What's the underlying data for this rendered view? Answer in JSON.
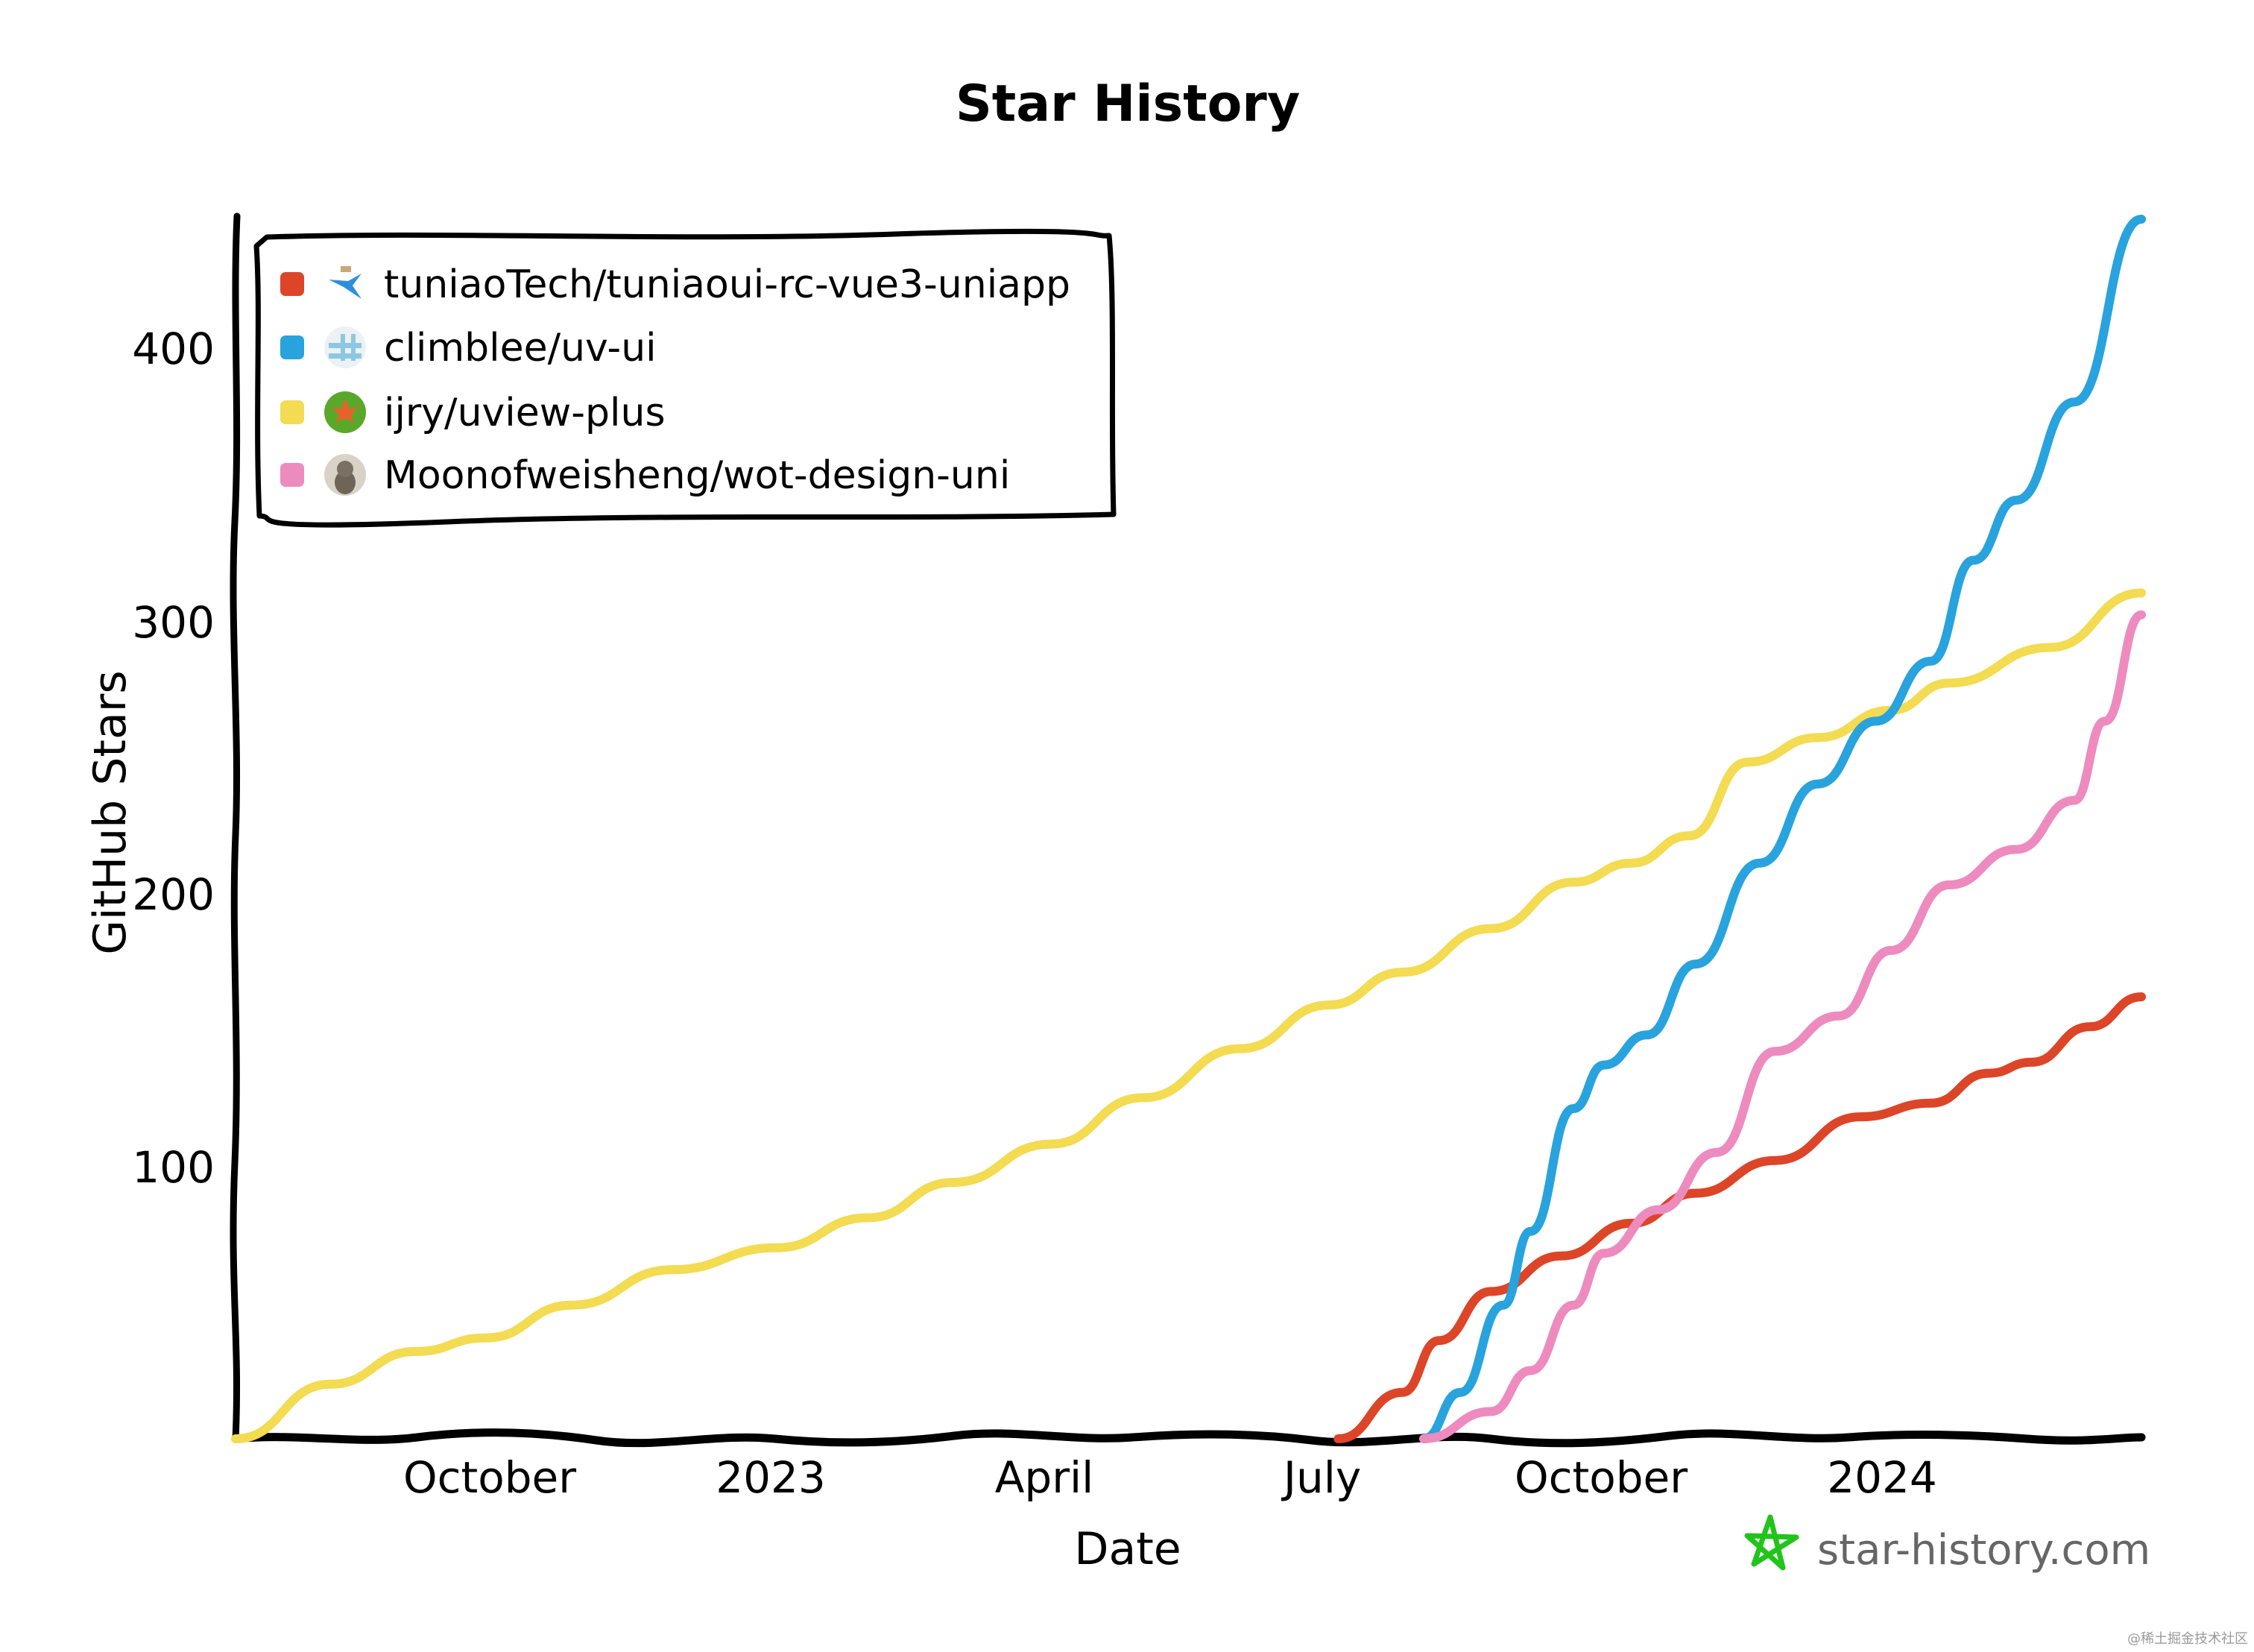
{
  "chart_data": {
    "type": "line",
    "title": "Star History",
    "xlabel": "Date",
    "ylabel": "GitHub Stars",
    "ylim": [
      0,
      450
    ],
    "xlim": [
      "2022-07-08",
      "2024-03-23"
    ],
    "grid": false,
    "legend_position": "top-left",
    "y_ticks": [
      100,
      200,
      300,
      400
    ],
    "x_ticks": [
      {
        "label": "October",
        "date": "2022-10-01"
      },
      {
        "label": "2023",
        "date": "2023-01-01"
      },
      {
        "label": "April",
        "date": "2023-04-01"
      },
      {
        "label": "July",
        "date": "2023-07-01"
      },
      {
        "label": "October",
        "date": "2023-10-01"
      },
      {
        "label": "2024",
        "date": "2024-01-01"
      }
    ],
    "series": [
      {
        "name": "tuniaoTech/tuniaoui-rc-vue3-uniapp",
        "color": "#dd4528",
        "icon": "bird-avatar",
        "points": [
          [
            "2023-07-04",
            0
          ],
          [
            "2023-07-25",
            17
          ],
          [
            "2023-08-06",
            36
          ],
          [
            "2023-08-23",
            54
          ],
          [
            "2023-09-15",
            67
          ],
          [
            "2023-10-08",
            79
          ],
          [
            "2023-10-29",
            90
          ],
          [
            "2023-11-24",
            102
          ],
          [
            "2023-12-22",
            118
          ],
          [
            "2024-01-14",
            123
          ],
          [
            "2024-02-02",
            134
          ],
          [
            "2024-02-16",
            138
          ],
          [
            "2024-03-06",
            151
          ],
          [
            "2024-03-23",
            162
          ]
        ]
      },
      {
        "name": "climblee/uv-ui",
        "color": "#28a3dd",
        "icon": "hash-avatar",
        "points": [
          [
            "2023-08-01",
            0
          ],
          [
            "2023-08-13",
            17
          ],
          [
            "2023-08-27",
            49
          ],
          [
            "2023-09-05",
            76
          ],
          [
            "2023-09-19",
            121
          ],
          [
            "2023-09-29",
            137
          ],
          [
            "2023-10-13",
            148
          ],
          [
            "2023-10-29",
            174
          ],
          [
            "2023-11-19",
            211
          ],
          [
            "2023-12-08",
            240
          ],
          [
            "2023-12-27",
            263
          ],
          [
            "2024-01-14",
            285
          ],
          [
            "2024-01-28",
            322
          ],
          [
            "2024-02-11",
            344
          ],
          [
            "2024-03-01",
            380
          ],
          [
            "2024-03-23",
            447
          ]
        ]
      },
      {
        "name": "ijry/uview-plus",
        "color": "#f3db52",
        "icon": "maple-leaf-avatar",
        "points": [
          [
            "2022-07-08",
            0
          ],
          [
            "2022-08-08",
            20
          ],
          [
            "2022-09-05",
            32
          ],
          [
            "2022-09-28",
            37
          ],
          [
            "2022-10-26",
            49
          ],
          [
            "2022-11-28",
            62
          ],
          [
            "2023-01-01",
            70
          ],
          [
            "2023-01-31",
            81
          ],
          [
            "2023-02-28",
            94
          ],
          [
            "2023-04-01",
            108
          ],
          [
            "2023-05-01",
            125
          ],
          [
            "2023-06-02",
            143
          ],
          [
            "2023-07-01",
            159
          ],
          [
            "2023-07-25",
            171
          ],
          [
            "2023-08-23",
            187
          ],
          [
            "2023-09-19",
            204
          ],
          [
            "2023-10-08",
            211
          ],
          [
            "2023-10-27",
            221
          ],
          [
            "2023-11-15",
            248
          ],
          [
            "2023-12-08",
            257
          ],
          [
            "2024-01-01",
            267
          ],
          [
            "2024-01-20",
            277
          ],
          [
            "2024-02-22",
            290
          ],
          [
            "2024-03-23",
            310
          ]
        ]
      },
      {
        "name": "Moonofweisheng/wot-design-uni",
        "color": "#ed8bbf",
        "icon": "cat-avatar",
        "points": [
          [
            "2023-08-01",
            0
          ],
          [
            "2023-08-23",
            10
          ],
          [
            "2023-09-05",
            25
          ],
          [
            "2023-09-19",
            49
          ],
          [
            "2023-09-29",
            68
          ],
          [
            "2023-10-17",
            84
          ],
          [
            "2023-11-05",
            105
          ],
          [
            "2023-11-24",
            142
          ],
          [
            "2023-12-15",
            155
          ],
          [
            "2024-01-01",
            179
          ],
          [
            "2024-01-20",
            203
          ],
          [
            "2024-02-11",
            216
          ],
          [
            "2024-03-01",
            234
          ],
          [
            "2024-03-11",
            263
          ],
          [
            "2024-03-23",
            302
          ]
        ]
      }
    ]
  },
  "chart": {
    "title": "Star History",
    "xlabel": "Date",
    "ylabel": "GitHub Stars",
    "y_ticks": [
      "100",
      "200",
      "300",
      "400"
    ],
    "x_ticks": [
      "October",
      "2023",
      "April",
      "July",
      "October",
      "2024"
    ]
  },
  "legend": {
    "items": [
      {
        "label": "tuniaoTech/tuniaoui-rc-vue3-uniapp",
        "color": "#dd4528",
        "icon": "bird-avatar"
      },
      {
        "label": "climblee/uv-ui",
        "color": "#28a3dd",
        "icon": "hash-avatar"
      },
      {
        "label": "ijry/uview-plus",
        "color": "#f3db52",
        "icon": "maple-leaf-avatar"
      },
      {
        "label": "Moonofweisheng/wot-design-uni",
        "color": "#ed8bbf",
        "icon": "cat-avatar"
      }
    ]
  },
  "branding": {
    "text": "star-history.com",
    "icon": "star-outline-icon",
    "icon_color": "#22c41c"
  },
  "watermark": "@稀土掘金技术社区"
}
